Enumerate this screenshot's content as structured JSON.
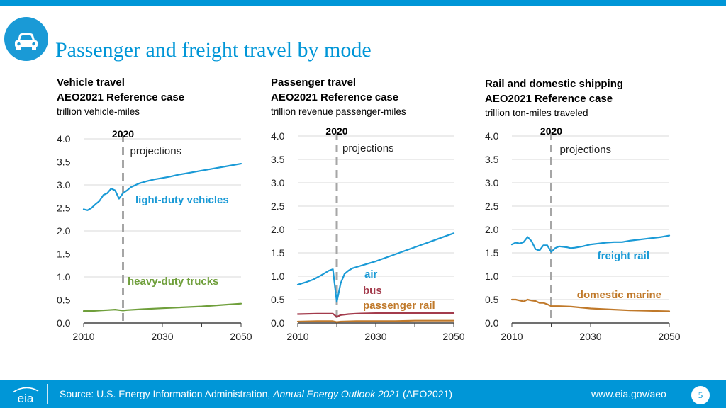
{
  "header": {
    "title": "Passenger and freight travel by mode",
    "logo_icon": "car-icon"
  },
  "footer": {
    "source_prefix": "Source: U.S. Energy Information Administration, ",
    "source_italic": "Annual Energy Outlook 2021",
    "source_suffix": " (AEO2021)",
    "url": "www.eia.gov/aeo",
    "page": "5",
    "logo_text": "eia"
  },
  "colors": {
    "brand": "#0096d7",
    "blue": "#1a9ad6",
    "green": "#6f9f3b",
    "red": "#a33b4c",
    "orange": "#c0792a",
    "grid": "#d9d9d9",
    "marker": "#a6a6a6"
  },
  "panels": [
    {
      "title": "Vehicle travel",
      "subtitle": "AEO2021 Reference case",
      "units": "trillion vehicle-miles"
    },
    {
      "title": "Passenger travel",
      "subtitle": "AEO2021 Reference case",
      "units": "trillion revenue passenger-miles"
    },
    {
      "title": "Rail and domestic shipping",
      "subtitle": "AEO2021 Reference case",
      "units": "trillion ton-miles traveled"
    }
  ],
  "chart_data": [
    {
      "type": "line",
      "title": "Vehicle travel",
      "ylim": [
        0,
        4
      ],
      "yticks": [
        "0.0",
        "0.5",
        "1.0",
        "1.5",
        "2.0",
        "2.5",
        "3.0",
        "3.5",
        "4.0"
      ],
      "xticks": [
        "2010",
        "2030",
        "2050"
      ],
      "marker_year": "2020",
      "marker_text": "projections",
      "series": [
        {
          "name": "light-duty vehicles",
          "color": "#1a9ad6",
          "x": [
            2010,
            2011,
            2012,
            2013,
            2014,
            2015,
            2016,
            2017,
            2018,
            2019,
            2020,
            2021,
            2022,
            2024,
            2026,
            2028,
            2030,
            2032,
            2034,
            2036,
            2038,
            2040,
            2042,
            2044,
            2046,
            2048,
            2050
          ],
          "y": [
            2.47,
            2.45,
            2.5,
            2.58,
            2.65,
            2.78,
            2.82,
            2.92,
            2.88,
            2.7,
            2.82,
            2.88,
            2.95,
            3.03,
            3.08,
            3.12,
            3.15,
            3.18,
            3.22,
            3.25,
            3.28,
            3.31,
            3.34,
            3.37,
            3.4,
            3.43,
            3.46
          ]
        },
        {
          "name": "heavy-duty trucks",
          "color": "#6f9f3b",
          "x": [
            2010,
            2012,
            2014,
            2016,
            2018,
            2019,
            2020,
            2021,
            2025,
            2030,
            2035,
            2040,
            2045,
            2050
          ],
          "y": [
            0.26,
            0.26,
            0.27,
            0.28,
            0.29,
            0.28,
            0.27,
            0.28,
            0.3,
            0.32,
            0.34,
            0.36,
            0.39,
            0.42
          ]
        }
      ]
    },
    {
      "type": "line",
      "title": "Passenger travel",
      "ylim": [
        0,
        4
      ],
      "yticks": [
        "0.0",
        "0.5",
        "1.0",
        "1.5",
        "2.0",
        "2.5",
        "3.0",
        "3.5",
        "4.0"
      ],
      "xticks": [
        "2010",
        "2030",
        "2050"
      ],
      "marker_year": "2020",
      "marker_text": "projections",
      "series": [
        {
          "name": "air",
          "color": "#1a9ad6",
          "x": [
            2010,
            2012,
            2014,
            2016,
            2018,
            2019,
            2020,
            2021,
            2022,
            2023,
            2024,
            2026,
            2028,
            2030,
            2032,
            2034,
            2036,
            2038,
            2040,
            2042,
            2044,
            2046,
            2048,
            2050
          ],
          "y": [
            0.82,
            0.87,
            0.93,
            1.02,
            1.12,
            1.15,
            0.45,
            0.85,
            1.05,
            1.12,
            1.17,
            1.22,
            1.27,
            1.32,
            1.38,
            1.44,
            1.5,
            1.56,
            1.62,
            1.68,
            1.74,
            1.8,
            1.86,
            1.92
          ]
        },
        {
          "name": "bus",
          "color": "#a33b4c",
          "x": [
            2010,
            2015,
            2019,
            2020,
            2021,
            2023,
            2025,
            2030,
            2035,
            2040,
            2045,
            2050
          ],
          "y": [
            0.19,
            0.2,
            0.2,
            0.13,
            0.17,
            0.19,
            0.2,
            0.21,
            0.21,
            0.21,
            0.21,
            0.21
          ]
        },
        {
          "name": "passenger rail",
          "color": "#c0792a",
          "x": [
            2010,
            2015,
            2019,
            2020,
            2021,
            2025,
            2030,
            2035,
            2040,
            2045,
            2050
          ],
          "y": [
            0.03,
            0.04,
            0.04,
            0.02,
            0.03,
            0.04,
            0.04,
            0.04,
            0.05,
            0.05,
            0.05
          ]
        }
      ]
    },
    {
      "type": "line",
      "title": "Rail and domestic shipping",
      "ylim": [
        0,
        4
      ],
      "yticks": [
        "0.0",
        "0.5",
        "1.0",
        "1.5",
        "2.0",
        "2.5",
        "3.0",
        "3.5",
        "4.0"
      ],
      "xticks": [
        "2010",
        "2030",
        "2050"
      ],
      "marker_year": "2020",
      "marker_text": "projections",
      "series": [
        {
          "name": "freight rail",
          "color": "#1a9ad6",
          "x": [
            2010,
            2011,
            2012,
            2013,
            2014,
            2015,
            2016,
            2017,
            2018,
            2019,
            2020,
            2021,
            2022,
            2023,
            2024,
            2025,
            2026,
            2028,
            2030,
            2032,
            2034,
            2036,
            2038,
            2040,
            2042,
            2044,
            2046,
            2048,
            2050
          ],
          "y": [
            1.68,
            1.72,
            1.7,
            1.73,
            1.84,
            1.75,
            1.58,
            1.55,
            1.66,
            1.66,
            1.52,
            1.6,
            1.64,
            1.63,
            1.62,
            1.6,
            1.61,
            1.64,
            1.68,
            1.7,
            1.72,
            1.73,
            1.73,
            1.76,
            1.78,
            1.8,
            1.82,
            1.84,
            1.87
          ]
        },
        {
          "name": "domestic marine",
          "color": "#c0792a",
          "x": [
            2010,
            2011,
            2012,
            2013,
            2014,
            2015,
            2016,
            2017,
            2018,
            2019,
            2020,
            2022,
            2025,
            2030,
            2035,
            2040,
            2045,
            2050
          ],
          "y": [
            0.5,
            0.5,
            0.48,
            0.46,
            0.5,
            0.48,
            0.47,
            0.43,
            0.43,
            0.4,
            0.36,
            0.36,
            0.35,
            0.31,
            0.29,
            0.27,
            0.26,
            0.25
          ]
        }
      ]
    }
  ]
}
